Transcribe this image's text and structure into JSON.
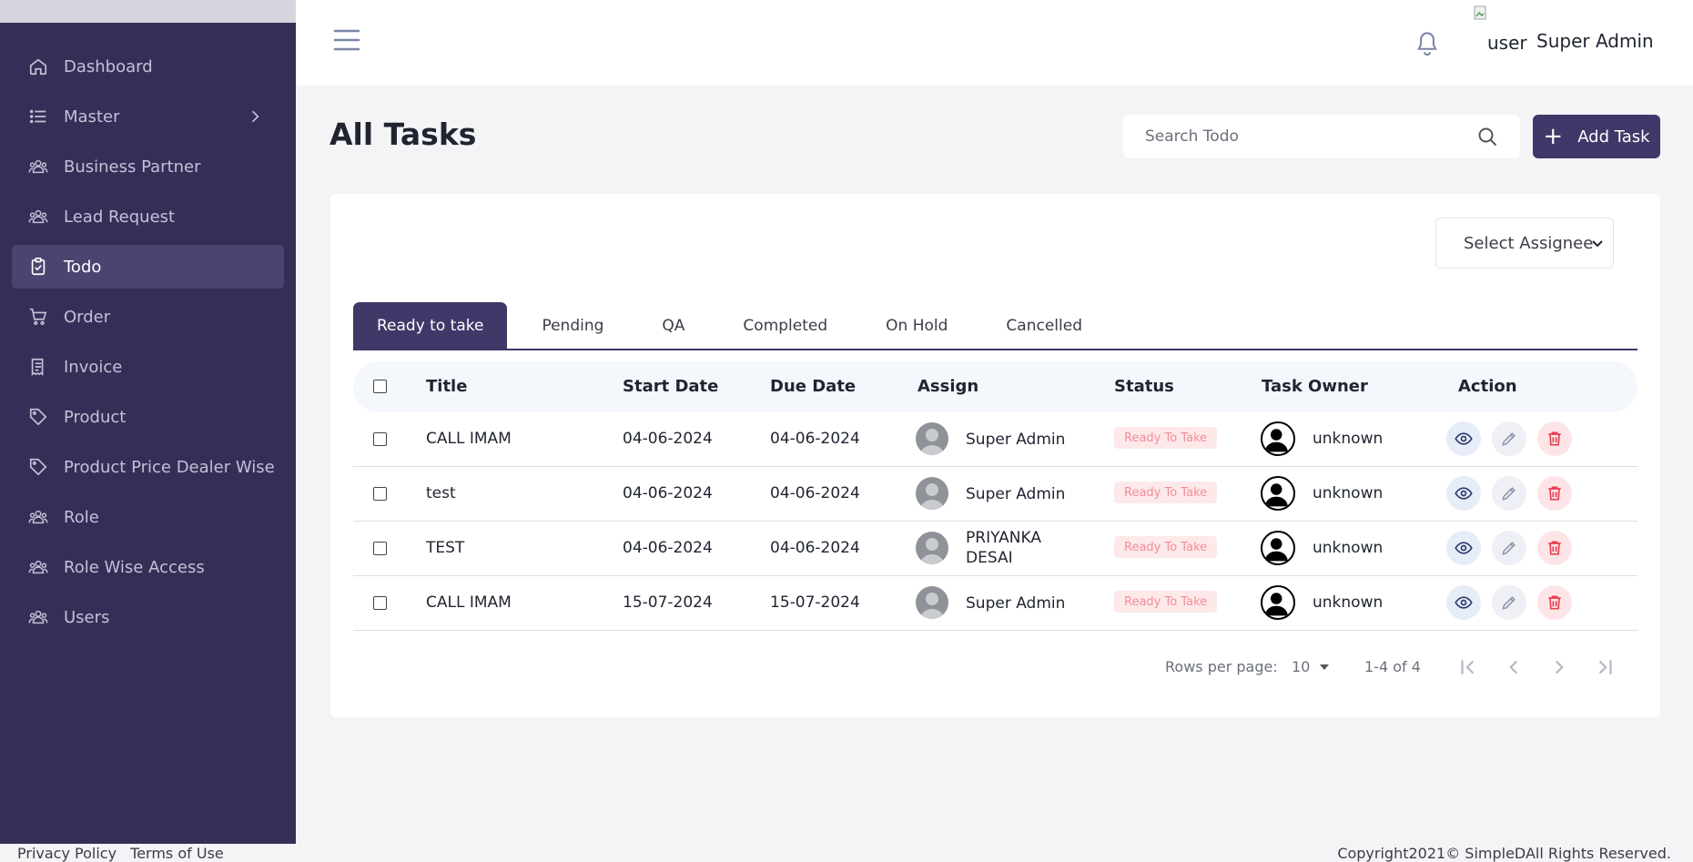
{
  "sidebar": {
    "items": [
      {
        "label": "Dashboard",
        "icon": "home-icon"
      },
      {
        "label": "Master",
        "icon": "list-icon"
      },
      {
        "label": "Business Partner",
        "icon": "users-icon"
      },
      {
        "label": "Lead Request",
        "icon": "users-icon"
      },
      {
        "label": "Todo",
        "icon": "clipboard-check-icon",
        "active": true
      },
      {
        "label": "Order",
        "icon": "cart-icon"
      },
      {
        "label": "Invoice",
        "icon": "receipt-icon"
      },
      {
        "label": "Product",
        "icon": "tag-icon"
      },
      {
        "label": "Product Price Dealer Wise",
        "icon": "tag-icon"
      },
      {
        "label": "Role",
        "icon": "users-icon"
      },
      {
        "label": "Role Wise Access",
        "icon": "users-icon"
      },
      {
        "label": "Users",
        "icon": "users-icon"
      }
    ]
  },
  "header": {
    "user_img_alt": "user",
    "user_name": "Super Admin"
  },
  "page": {
    "title": "All Tasks",
    "search_placeholder": "Search Todo",
    "add_label": "Add Task"
  },
  "filter": {
    "assignee_label": "Select Assignee"
  },
  "tabs": [
    "Ready to take",
    "Pending",
    "QA",
    "Completed",
    "On Hold",
    "Cancelled"
  ],
  "table": {
    "columns": [
      "Title",
      "Start Date",
      "Due Date",
      "Assign",
      "Status",
      "Task Owner",
      "Action"
    ],
    "rows": [
      {
        "title": "CALL IMAM",
        "start": "04-06-2024",
        "due": "04-06-2024",
        "assign": "Super Admin",
        "status": "Ready To Take",
        "owner": "unknown"
      },
      {
        "title": "test",
        "start": "04-06-2024",
        "due": "04-06-2024",
        "assign": "Super Admin",
        "status": "Ready To Take",
        "owner": "unknown"
      },
      {
        "title": "TEST",
        "start": "04-06-2024",
        "due": "04-06-2024",
        "assign": "PRIYANKA DESAI",
        "status": "Ready To Take",
        "owner": "unknown"
      },
      {
        "title": "CALL IMAM",
        "start": "15-07-2024",
        "due": "15-07-2024",
        "assign": "Super Admin",
        "status": "Ready To Take",
        "owner": "unknown"
      }
    ]
  },
  "pagination": {
    "rows_per_page_label": "Rows per page:",
    "rows_per_page": "10",
    "range": "1-4 of 4"
  },
  "footer": {
    "privacy": "Privacy Policy",
    "terms": "Terms of Use",
    "copyright": "Copyright2021© SimpleDAll Rights Reserved."
  },
  "colors": {
    "sidebar_bg": "#352f58",
    "accent": "#3f3868",
    "status_text": "#f38d98",
    "status_bg": "#fde9ea"
  }
}
